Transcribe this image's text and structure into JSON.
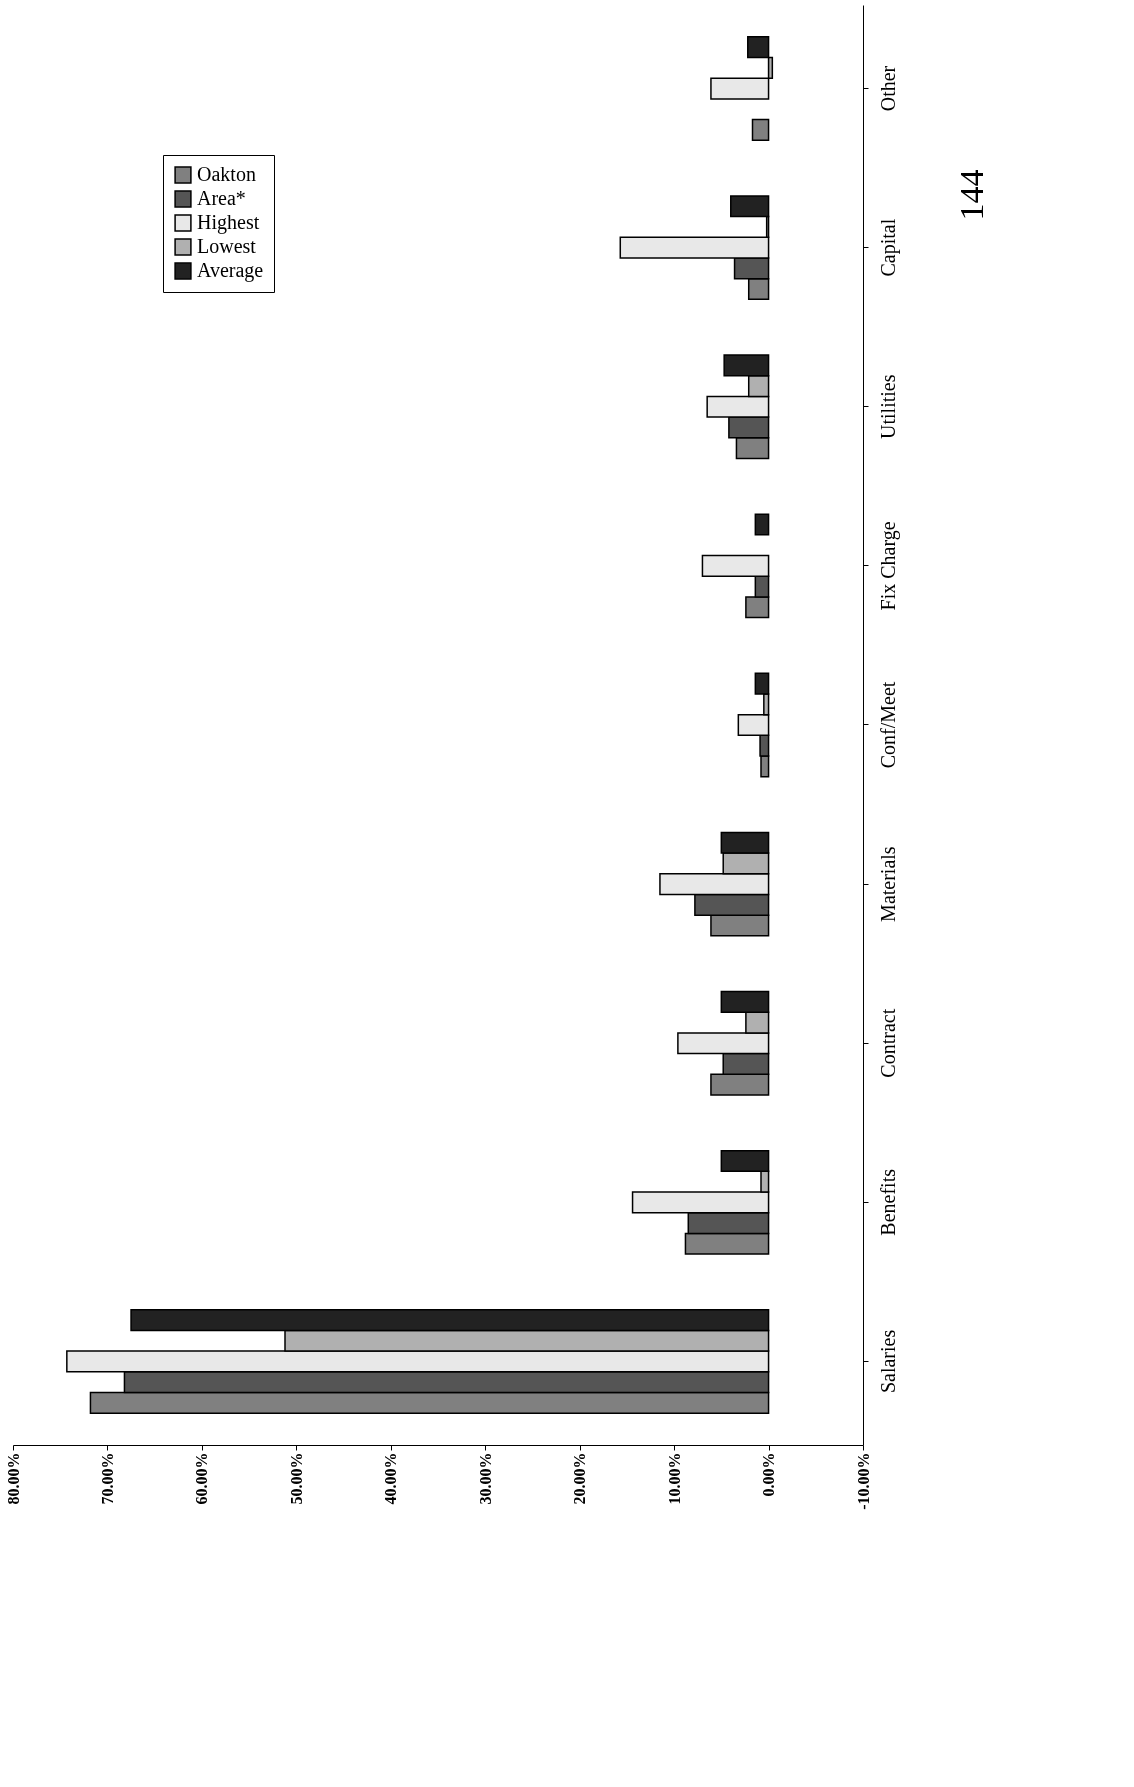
{
  "chart_data": {
    "type": "bar",
    "orientation": "horizontal",
    "categories": [
      "Other",
      "Capital",
      "Utilities",
      "Fix Charge",
      "Conf/Meet",
      "Materials",
      "Contract",
      "Benefits",
      "Salaries"
    ],
    "series": [
      {
        "name": "Oakton",
        "color": "#808080",
        "values": [
          1.7,
          2.1,
          3.4,
          2.4,
          0.8,
          6.1,
          6.1,
          8.8,
          71.8
        ]
      },
      {
        "name": "Area*",
        "color": "#555555",
        "values": [
          null,
          3.6,
          4.2,
          1.4,
          0.9,
          7.8,
          4.8,
          8.5,
          68.2
        ]
      },
      {
        "name": "Highest",
        "color": "#e8e8e8",
        "values": [
          6.1,
          15.7,
          6.5,
          7.0,
          3.2,
          11.5,
          9.6,
          14.4,
          74.3
        ]
      },
      {
        "name": "Lowest",
        "color": "#b0b0b0",
        "values": [
          -0.4,
          0.2,
          2.1,
          null,
          0.5,
          4.8,
          2.4,
          0.8,
          51.2
        ]
      },
      {
        "name": "Average",
        "color": "#222222",
        "values": [
          2.2,
          4.0,
          4.7,
          1.4,
          1.4,
          5.0,
          5.0,
          5.0,
          67.5
        ]
      }
    ],
    "xlim": [
      80,
      -10
    ],
    "xticks": [
      {
        "value": 80,
        "label": "80.00%"
      },
      {
        "value": 70,
        "label": "70.00%"
      },
      {
        "value": 60,
        "label": "60.00%"
      },
      {
        "value": 50,
        "label": "50.00%"
      },
      {
        "value": 40,
        "label": "40.00%"
      },
      {
        "value": 30,
        "label": "30.00%"
      },
      {
        "value": 20,
        "label": "20.00%"
      },
      {
        "value": 10,
        "label": "10.00%"
      },
      {
        "value": 0,
        "label": "0.00%"
      },
      {
        "value": -10,
        "label": "-10.00%"
      }
    ],
    "grid": false,
    "legend": "top left",
    "annotations": [
      "144"
    ]
  }
}
